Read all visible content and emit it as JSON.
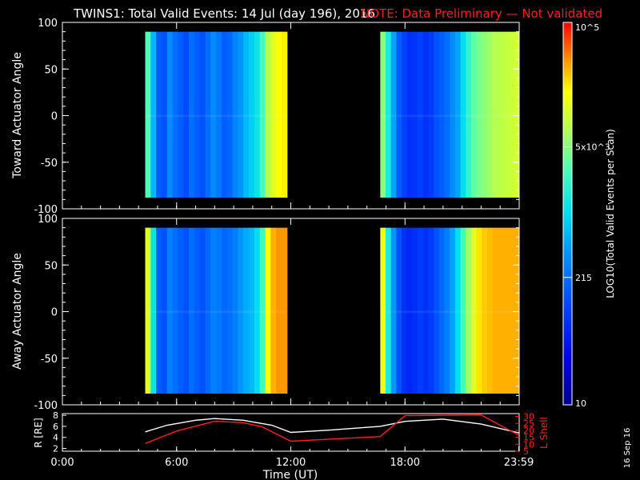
{
  "figure": {
    "title": "TWINS1: Total Valid Events: 14 Jul (day 196), 2016",
    "note": "NOTE: Data Preliminary — Not validated",
    "date_stamp": "16 Sep 16",
    "colors": {
      "text": "#ffffff",
      "note": "#ff2020",
      "background": "#000000"
    }
  },
  "chart_data": [
    {
      "type": "heatmap",
      "panel": "top",
      "ylabel": "Toward Actuator Angle",
      "ylim": [
        -100,
        100
      ],
      "y_ticks": [
        "100",
        "50",
        "0",
        "-50",
        "-100"
      ],
      "x_range_hours": [
        0,
        24
      ],
      "data_y_range": [
        -88,
        90
      ],
      "blocks": [
        {
          "start_hour": 4.35,
          "end_hour": 11.8,
          "profile": [
            0.62,
            0.45,
            0.3,
            0.28,
            0.38,
            0.33,
            0.3,
            0.27,
            0.33,
            0.3,
            0.28,
            0.33,
            0.38,
            0.35,
            0.3,
            0.32,
            0.37,
            0.4,
            0.45,
            0.48,
            0.52,
            0.6,
            0.72,
            0.78,
            0.82,
            0.83
          ]
        },
        {
          "start_hour": 16.7,
          "end_hour": 24.0,
          "profile": [
            0.68,
            0.55,
            0.42,
            0.3,
            0.25,
            0.22,
            0.23,
            0.25,
            0.22,
            0.24,
            0.28,
            0.3,
            0.33,
            0.38,
            0.42,
            0.5,
            0.58,
            0.63,
            0.66,
            0.68,
            0.7,
            0.72,
            0.73,
            0.74,
            0.75,
            0.76
          ]
        }
      ]
    },
    {
      "type": "heatmap",
      "panel": "middle",
      "ylabel": "Away Actuator Angle",
      "ylim": [
        -100,
        100
      ],
      "y_ticks": [
        "100",
        "50",
        "0",
        "-50",
        "-100"
      ],
      "x_range_hours": [
        0,
        24
      ],
      "data_y_range": [
        -88,
        90
      ],
      "blocks": [
        {
          "start_hour": 4.35,
          "end_hour": 11.8,
          "profile": [
            0.78,
            0.52,
            0.3,
            0.28,
            0.36,
            0.33,
            0.3,
            0.28,
            0.33,
            0.3,
            0.28,
            0.32,
            0.36,
            0.35,
            0.32,
            0.33,
            0.36,
            0.4,
            0.43,
            0.45,
            0.5,
            0.6,
            0.82,
            0.88,
            0.9,
            0.9
          ]
        },
        {
          "start_hour": 16.7,
          "end_hour": 24.0,
          "profile": [
            0.8,
            0.55,
            0.4,
            0.28,
            0.22,
            0.2,
            0.22,
            0.24,
            0.22,
            0.24,
            0.28,
            0.32,
            0.36,
            0.42,
            0.5,
            0.6,
            0.7,
            0.78,
            0.84,
            0.86,
            0.87,
            0.88,
            0.88,
            0.88,
            0.88,
            0.88
          ]
        }
      ]
    },
    {
      "type": "line",
      "panel": "bottom",
      "xlabel": "Time (UT)",
      "x_tick_labels": [
        "0:00",
        "6:00",
        "12:00",
        "18:00",
        "23:59"
      ],
      "x_ticks_hours": [
        0,
        6,
        12,
        18,
        23.98
      ],
      "ylabel_left": "R [RE]",
      "ylabel_right": "L Shell",
      "ylim_left": [
        1.5,
        8.3
      ],
      "ylim_right": [
        5,
        32
      ],
      "y_ticks_left": [
        "8",
        "6",
        "4",
        "2"
      ],
      "y_ticks_right": [
        "30",
        "25",
        "20",
        "15",
        "10",
        "5"
      ],
      "series": [
        {
          "axis": "left",
          "color": "#ffffff",
          "x": [
            4.35,
            5.5,
            7,
            8,
            9.5,
            11,
            12,
            14,
            16.7,
            18,
            20,
            22,
            24
          ],
          "y": [
            5.0,
            6.2,
            7.1,
            7.4,
            7.1,
            6.2,
            4.9,
            5.3,
            6.0,
            6.9,
            7.3,
            6.4,
            4.8
          ]
        },
        {
          "axis": "right",
          "color": "#ff2020",
          "x": [
            4.35,
            6,
            8,
            9.5,
            10.5,
            12,
            16.7,
            18.0,
            22.0,
            23.98
          ],
          "y": [
            10.5,
            19.5,
            26.5,
            25.5,
            22.5,
            12.2,
            15.5,
            30.5,
            31,
            16.5
          ]
        }
      ]
    }
  ],
  "colorbar": {
    "label": "LOG10(Total Valid Events per Scan)",
    "tick_labels": [
      "10",
      "215",
      "5x10^3",
      "10^5"
    ],
    "tick_values": [
      10,
      215,
      5000,
      100000
    ],
    "range": [
      10,
      100000
    ],
    "scale": "log"
  }
}
